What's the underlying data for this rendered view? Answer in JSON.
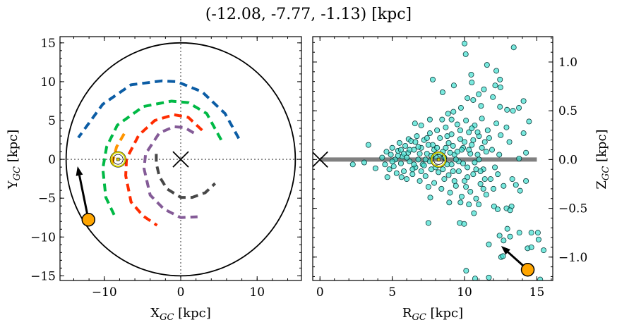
{
  "title": "(-12.08, -7.77, -1.13) [kpc]",
  "chart_data": [
    {
      "type": "line",
      "xlabel": "X_GC [kpc]",
      "ylabel": "Y_GC [kpc]",
      "xlim": [
        -15.8,
        15.8
      ],
      "ylim": [
        -15.6,
        15.8
      ],
      "xticks": [
        "−10",
        "0",
        "10"
      ],
      "xtick_values": [
        -10,
        0,
        10
      ],
      "yticks": [
        "−15",
        "−10",
        "−5",
        "0",
        "5",
        "10",
        "15"
      ],
      "ytick_values": [
        -15,
        -10,
        -5,
        0,
        5,
        10,
        15
      ],
      "grid": false,
      "boundary_circle_radius": 15,
      "series": [
        {
          "color": "#0c5da5",
          "style": "dashed",
          "points": [
            [
              7.6,
              2.7
            ],
            [
              5.8,
              5.9
            ],
            [
              2.8,
              8.7
            ],
            [
              -0.5,
              10.0
            ],
            [
              -2.5,
              10.1
            ],
            [
              -6.5,
              9.6
            ],
            [
              -10.2,
              7.1
            ],
            [
              -13.4,
              2.8
            ]
          ]
        },
        {
          "color": "#00b945",
          "style": "dashed",
          "points": [
            [
              5.3,
              2.5
            ],
            [
              3.4,
              5.9
            ],
            [
              1,
              7.3
            ],
            [
              -1.2,
              7.5
            ],
            [
              -4.9,
              6.8
            ],
            [
              -8.3,
              4.4
            ],
            [
              -9.7,
              1.6
            ],
            [
              -10.2,
              -1.2
            ],
            [
              -9.8,
              -4.9
            ],
            [
              -8.5,
              -7.6
            ]
          ]
        },
        {
          "color": "#ff2c00",
          "style": "dashed",
          "points": [
            [
              2.8,
              3.75
            ],
            [
              1,
              5.4
            ],
            [
              -0.9,
              5.75
            ],
            [
              -3.4,
              5.0
            ],
            [
              -5.5,
              3.1
            ],
            [
              -7.1,
              0.06
            ],
            [
              -7.2,
              -2.1
            ],
            [
              -6.5,
              -5.5
            ],
            [
              -4.9,
              -7.3
            ],
            [
              -3.1,
              -8.5
            ]
          ]
        },
        {
          "color": "#845b97",
          "style": "dashed",
          "points": [
            [
              1.7,
              3.4
            ],
            [
              0.5,
              4.1
            ],
            [
              -0.9,
              4.2
            ],
            [
              -2.8,
              3.4
            ],
            [
              -4.6,
              0.7
            ],
            [
              -4.8,
              -1.2
            ],
            [
              -4.0,
              -4.6
            ],
            [
              -2.2,
              -6.4
            ],
            [
              0,
              -7.5
            ],
            [
              2.2,
              -7.4
            ]
          ]
        },
        {
          "color": "#474747",
          "style": "dashed",
          "points": [
            [
              -3.2,
              0.7
            ],
            [
              -3.2,
              -0.5
            ],
            [
              -2.8,
              -2.2
            ],
            [
              -1.8,
              -3.8
            ],
            [
              0,
              -4.9
            ],
            [
              1.5,
              -4.9
            ],
            [
              3.2,
              -4.3
            ],
            [
              4.5,
              -3.1
            ]
          ]
        },
        {
          "color": "#ff9500",
          "style": "dashed",
          "points": [
            [
              -7.4,
              3.3
            ],
            [
              -8.4,
              1.6
            ],
            [
              -9.1,
              -1.0
            ]
          ]
        }
      ],
      "sun": [
        -8.2,
        0
      ],
      "galactic_center": [
        0,
        0
      ],
      "object": [
        -12.08,
        -7.77
      ],
      "velocity_arrow_to": [
        -13.5,
        -0.9
      ]
    },
    {
      "type": "scatter",
      "xlabel": "R_GC [kpc]",
      "ylabel": "Z_GC [kpc]",
      "xlim": [
        -0.5,
        16.1
      ],
      "ylim": [
        -1.24,
        1.26
      ],
      "xticks": [
        "0",
        "5",
        "10",
        "15"
      ],
      "xtick_values": [
        0,
        5,
        10,
        15
      ],
      "yticks": [
        "−1.0",
        "−0.5",
        "0.0",
        "0.5",
        "1.0"
      ],
      "ytick_values": [
        -1.0,
        -0.5,
        0.0,
        0.5,
        1.0
      ],
      "grid": false,
      "point_color": "#40e0d0",
      "disk_line": [
        [
          0,
          0
        ],
        [
          15,
          0
        ]
      ],
      "sun": [
        8.2,
        0
      ],
      "galactic_center": [
        0,
        0
      ],
      "object": [
        14.37,
        -1.13
      ],
      "velocity_arrow_to": [
        12.53,
        -0.886
      ],
      "points": [
        [
          10.0,
          1.19
        ],
        [
          10.08,
          1.08
        ],
        [
          13.4,
          1.15
        ],
        [
          11.55,
          0.97
        ],
        [
          12.2,
          0.91
        ],
        [
          7.8,
          0.82
        ],
        [
          10.46,
          0.87
        ],
        [
          10.5,
          0.79
        ],
        [
          12.45,
          0.82
        ],
        [
          9.26,
          0.76
        ],
        [
          8.48,
          0.69
        ],
        [
          11.34,
          0.72
        ],
        [
          12.12,
          0.76
        ],
        [
          12.48,
          0.74
        ],
        [
          10.2,
          0.63
        ],
        [
          10.98,
          0.67
        ],
        [
          11.96,
          0.64
        ],
        [
          10.6,
          0.61
        ],
        [
          14.08,
          0.6
        ],
        [
          11.14,
          0.55
        ],
        [
          9.75,
          0.53
        ],
        [
          13.76,
          0.53
        ],
        [
          9.23,
          0.49
        ],
        [
          8.86,
          0.47
        ],
        [
          12.45,
          0.54
        ],
        [
          12.94,
          0.51
        ],
        [
          13.35,
          0.5
        ],
        [
          14.46,
          0.39
        ],
        [
          6.57,
          0.37
        ],
        [
          7.0,
          0.35
        ],
        [
          7.6,
          0.41
        ],
        [
          8.45,
          0.41
        ],
        [
          9.1,
          0.41
        ],
        [
          3.35,
          0.15
        ],
        [
          6.13,
          0.21
        ],
        [
          14.08,
          0.27
        ],
        [
          14.25,
          0.07
        ],
        [
          13.77,
          0.01
        ],
        [
          2.27,
          -0.05
        ],
        [
          3.06,
          -0.03
        ],
        [
          3.84,
          -0.09
        ],
        [
          4.66,
          -0.18
        ],
        [
          5.64,
          -0.18
        ],
        [
          7.5,
          -0.65
        ],
        [
          9.67,
          -0.65
        ],
        [
          9.97,
          -0.66
        ],
        [
          7.63,
          -0.39
        ],
        [
          8.94,
          -0.44
        ],
        [
          9.72,
          -0.44
        ],
        [
          10.3,
          -0.46
        ],
        [
          10.65,
          -0.55
        ],
        [
          10.98,
          -0.46
        ],
        [
          12.04,
          -0.48
        ],
        [
          12.29,
          -0.51
        ],
        [
          12.9,
          -0.5
        ],
        [
          13.25,
          -0.48
        ],
        [
          13.15,
          -0.52
        ],
        [
          13.84,
          -0.32
        ],
        [
          14.25,
          -0.22
        ],
        [
          13.55,
          -0.26
        ],
        [
          12.96,
          -0.71
        ],
        [
          12.42,
          -0.78
        ],
        [
          13.15,
          -0.79
        ],
        [
          13.79,
          -0.75
        ],
        [
          14.62,
          -0.75
        ],
        [
          15.07,
          -0.75
        ],
        [
          15.12,
          -0.82
        ],
        [
          12.7,
          -0.83
        ],
        [
          11.68,
          -0.87
        ],
        [
          14.36,
          -0.91
        ],
        [
          14.62,
          -0.9
        ],
        [
          15.47,
          -0.93
        ],
        [
          12.53,
          -1.0
        ],
        [
          12.66,
          -0.99
        ],
        [
          10.11,
          -1.14
        ],
        [
          10.73,
          -1.22
        ],
        [
          11.68,
          -1.21
        ],
        [
          15.23,
          -1.23
        ],
        [
          4.3,
          0.02
        ],
        [
          4.5,
          -0.05
        ],
        [
          4.6,
          0.08
        ],
        [
          4.8,
          -0.1
        ],
        [
          4.9,
          0.05
        ],
        [
          5.0,
          0.12
        ],
        [
          5.1,
          -0.07
        ],
        [
          5.2,
          0.0
        ],
        [
          5.3,
          -0.14
        ],
        [
          5.4,
          0.09
        ],
        [
          5.5,
          0.17
        ],
        [
          5.6,
          -0.04
        ],
        [
          5.7,
          0.03
        ],
        [
          5.8,
          -0.12
        ],
        [
          5.9,
          0.14
        ],
        [
          6.0,
          -0.2
        ],
        [
          6.1,
          0.07
        ],
        [
          6.2,
          -0.02
        ],
        [
          6.3,
          0.19
        ],
        [
          6.4,
          -0.15
        ],
        [
          6.5,
          0.1
        ],
        [
          6.6,
          -0.08
        ],
        [
          6.7,
          0.24
        ],
        [
          6.8,
          0.0
        ],
        [
          6.9,
          -0.22
        ],
        [
          7.0,
          0.12
        ],
        [
          7.1,
          -0.05
        ],
        [
          7.2,
          0.2
        ],
        [
          7.3,
          -0.17
        ],
        [
          7.4,
          0.06
        ],
        [
          7.5,
          -0.28
        ],
        [
          7.6,
          0.27
        ],
        [
          7.7,
          -0.1
        ],
        [
          7.8,
          0.15
        ],
        [
          7.9,
          -0.24
        ],
        [
          8.0,
          0.03
        ],
        [
          8.1,
          0.3
        ],
        [
          8.2,
          -0.13
        ],
        [
          8.3,
          0.22
        ],
        [
          8.4,
          -0.3
        ],
        [
          8.5,
          0.08
        ],
        [
          8.6,
          -0.2
        ],
        [
          8.7,
          0.33
        ],
        [
          8.8,
          -0.05
        ],
        [
          8.9,
          0.17
        ],
        [
          9.0,
          -0.34
        ],
        [
          9.1,
          0.26
        ],
        [
          9.2,
          -0.12
        ],
        [
          9.3,
          0.05
        ],
        [
          9.4,
          -0.27
        ],
        [
          9.5,
          0.36
        ],
        [
          9.6,
          -0.02
        ],
        [
          9.7,
          0.21
        ],
        [
          9.8,
          -0.38
        ],
        [
          9.9,
          0.12
        ],
        [
          10.0,
          -0.22
        ],
        [
          10.1,
          0.4
        ],
        [
          10.2,
          -0.08
        ],
        [
          10.3,
          0.28
        ],
        [
          10.4,
          -0.33
        ],
        [
          10.5,
          0.15
        ],
        [
          10.6,
          -0.15
        ],
        [
          10.7,
          0.35
        ],
        [
          10.8,
          -0.4
        ],
        [
          10.9,
          0.05
        ],
        [
          11.0,
          0.24
        ],
        [
          11.1,
          -0.25
        ],
        [
          11.2,
          0.42
        ],
        [
          11.3,
          -0.1
        ],
        [
          11.4,
          0.18
        ],
        [
          11.5,
          -0.36
        ],
        [
          11.6,
          0.3
        ],
        [
          11.8,
          -0.2
        ],
        [
          11.9,
          0.1
        ],
        [
          12.0,
          -0.3
        ],
        [
          12.2,
          0.37
        ],
        [
          12.3,
          -0.15
        ],
        [
          12.5,
          0.25
        ],
        [
          12.7,
          -0.27
        ],
        [
          12.9,
          0.33
        ],
        [
          13.1,
          0.18
        ],
        [
          13.3,
          -0.2
        ],
        [
          5.0,
          -0.02
        ],
        [
          5.4,
          0.04
        ],
        [
          5.8,
          0.06
        ],
        [
          6.2,
          0.1
        ],
        [
          6.5,
          -0.05
        ],
        [
          6.8,
          0.13
        ],
        [
          7.0,
          -0.12
        ],
        [
          7.3,
          0.0
        ],
        [
          7.5,
          0.15
        ],
        [
          7.7,
          0.04
        ],
        [
          7.9,
          0.1
        ],
        [
          8.0,
          -0.08
        ],
        [
          8.3,
          0.05
        ],
        [
          8.5,
          -0.1
        ],
        [
          8.7,
          0.12
        ],
        [
          8.9,
          -0.16
        ],
        [
          9.0,
          0.07
        ],
        [
          9.2,
          0.14
        ],
        [
          9.4,
          0.0
        ],
        [
          9.6,
          -0.12
        ],
        [
          9.8,
          0.1
        ],
        [
          10.0,
          0.18
        ],
        [
          10.2,
          -0.18
        ],
        [
          10.4,
          0.06
        ],
        [
          10.6,
          0.2
        ],
        [
          10.8,
          -0.1
        ],
        [
          11.0,
          0.0
        ],
        [
          11.2,
          0.12
        ],
        [
          11.4,
          -0.2
        ],
        [
          6.0,
          0.02
        ],
        [
          6.4,
          -0.1
        ],
        [
          6.9,
          0.06
        ],
        [
          7.2,
          -0.06
        ],
        [
          7.6,
          -0.02
        ],
        [
          8.1,
          0.12
        ],
        [
          8.6,
          0.02
        ],
        [
          9.1,
          -0.05
        ],
        [
          9.5,
          0.08
        ],
        [
          9.9,
          -0.04
        ],
        [
          10.3,
          0.1
        ],
        [
          10.7,
          -0.03
        ],
        [
          11.1,
          -0.12
        ],
        [
          11.5,
          0.08
        ],
        [
          5.6,
          0.1
        ],
        [
          6.6,
          0.18
        ],
        [
          7.4,
          0.22
        ],
        [
          8.8,
          0.24
        ],
        [
          9.3,
          -0.22
        ],
        [
          9.7,
          0.3
        ],
        [
          10.1,
          -0.28
        ],
        [
          10.5,
          0.32
        ],
        [
          10.9,
          0.28
        ],
        [
          11.3,
          -0.3
        ],
        [
          11.7,
          0.22
        ],
        [
          12.1,
          -0.08
        ],
        [
          12.4,
          0.05
        ]
      ]
    }
  ]
}
